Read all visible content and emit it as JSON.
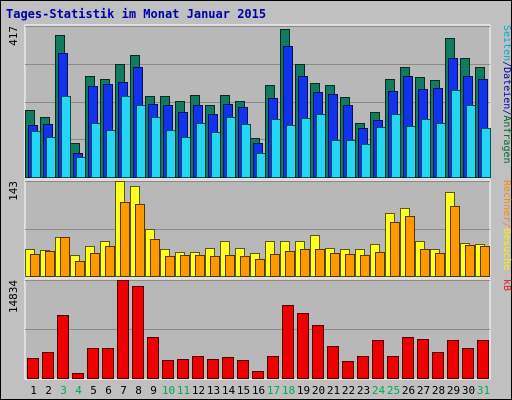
{
  "chart_data": {
    "type": "bar",
    "title": "Tages-Statistik im Monat Januar 2015",
    "categories": [
      "1",
      "2",
      "3",
      "4",
      "5",
      "6",
      "7",
      "8",
      "9",
      "10",
      "11",
      "12",
      "13",
      "14",
      "15",
      "16",
      "17",
      "18",
      "19",
      "20",
      "21",
      "22",
      "23",
      "24",
      "25",
      "26",
      "27",
      "28",
      "29",
      "30",
      "31"
    ],
    "weekend_days": [
      "3",
      "4",
      "10",
      "11",
      "17",
      "18",
      "24",
      "25",
      "31"
    ],
    "panels": [
      {
        "ymax": 417,
        "ymax_label": "417",
        "right_labels": [
          {
            "text": "Anfragen",
            "color": "#006633"
          },
          {
            "text": "/",
            "color": "#0000aa"
          },
          {
            "text": "Dateien",
            "color": "#0000aa"
          },
          {
            "text": "/",
            "color": "#0000aa"
          },
          {
            "text": "Seiten",
            "color": "#00aacc"
          }
        ],
        "series": [
          {
            "key": "anfragen",
            "fill": "#117a5f",
            "values": [
              186,
              165,
              392,
              93,
              279,
              272,
              313,
              337,
              223,
              223,
              209,
              227,
              198,
              226,
              209,
              107,
              255,
              409,
              312,
              260,
              254,
              222,
              150,
              180,
              270,
              305,
              275,
              269,
              383,
              330,
              303
            ]
          },
          {
            "key": "dateien",
            "fill": "#1133ee",
            "values": [
              144,
              145,
              342,
              65,
              250,
              258,
              263,
              305,
              201,
              200,
              180,
              200,
              174,
              202,
              192,
              93,
              218,
              362,
              280,
              235,
              228,
              198,
              135,
              158,
              238,
              278,
              243,
              245,
              328,
              280,
              270
            ]
          },
          {
            "key": "seiten",
            "fill": "#22d6f4",
            "values": [
              128,
              111,
              225,
              55,
              150,
              130,
              225,
              200,
              165,
              130,
              110,
              150,
              123,
              165,
              145,
              67,
              160,
              143,
              162,
              173,
              101,
              103,
              90,
              138,
              175,
              140,
              160,
              150,
              240,
              200,
              135
            ]
          }
        ]
      },
      {
        "ymax": 143,
        "ymax_label": "143",
        "right_labels": [
          {
            "text": "Besuche",
            "color": "#ffee00"
          },
          {
            "text": "/",
            "color": "#ff8800"
          },
          {
            "text": "Rechner",
            "color": "#ff8800"
          }
        ],
        "series": [
          {
            "key": "besuche",
            "fill": "#ffff22",
            "values": [
              40,
              39,
              58,
              32,
              45,
              53,
              143,
              135,
              70,
              40,
              36,
              36,
              42,
              52,
              42,
              35,
              52,
              52,
              53,
              62,
              42,
              40,
              40,
              48,
              95,
              103,
              52,
              40,
              126,
              50,
              48
            ]
          },
          {
            "key": "rechner",
            "fill": "#ff9900",
            "values": [
              33,
              37,
              58,
              23,
              35,
              45,
              111,
              109,
              55,
              30,
              32,
              32,
              30,
              31,
              30,
              26,
              33,
              38,
              40,
              40,
              34,
              33,
              32,
              36,
              82,
              90,
              41,
              35,
              105,
              47,
              45
            ]
          }
        ]
      },
      {
        "ymax": 14834,
        "ymax_label": "14834",
        "right_labels": [
          {
            "text": "kB",
            "color": "#dd2222"
          }
        ],
        "series": [
          {
            "key": "kb",
            "fill": "#ee0000",
            "values": [
              3000,
              3900,
              9500,
              800,
              4600,
              4500,
              14834,
              13900,
              6200,
              2700,
              2900,
              3400,
              2900,
              3200,
              2800,
              1100,
              3300,
              11000,
              9800,
              8000,
              4800,
              2600,
              3300,
              5800,
              3400,
              6200,
              5900,
              3900,
              5800,
              4600,
              5700
            ]
          }
        ]
      }
    ],
    "grid": true
  }
}
